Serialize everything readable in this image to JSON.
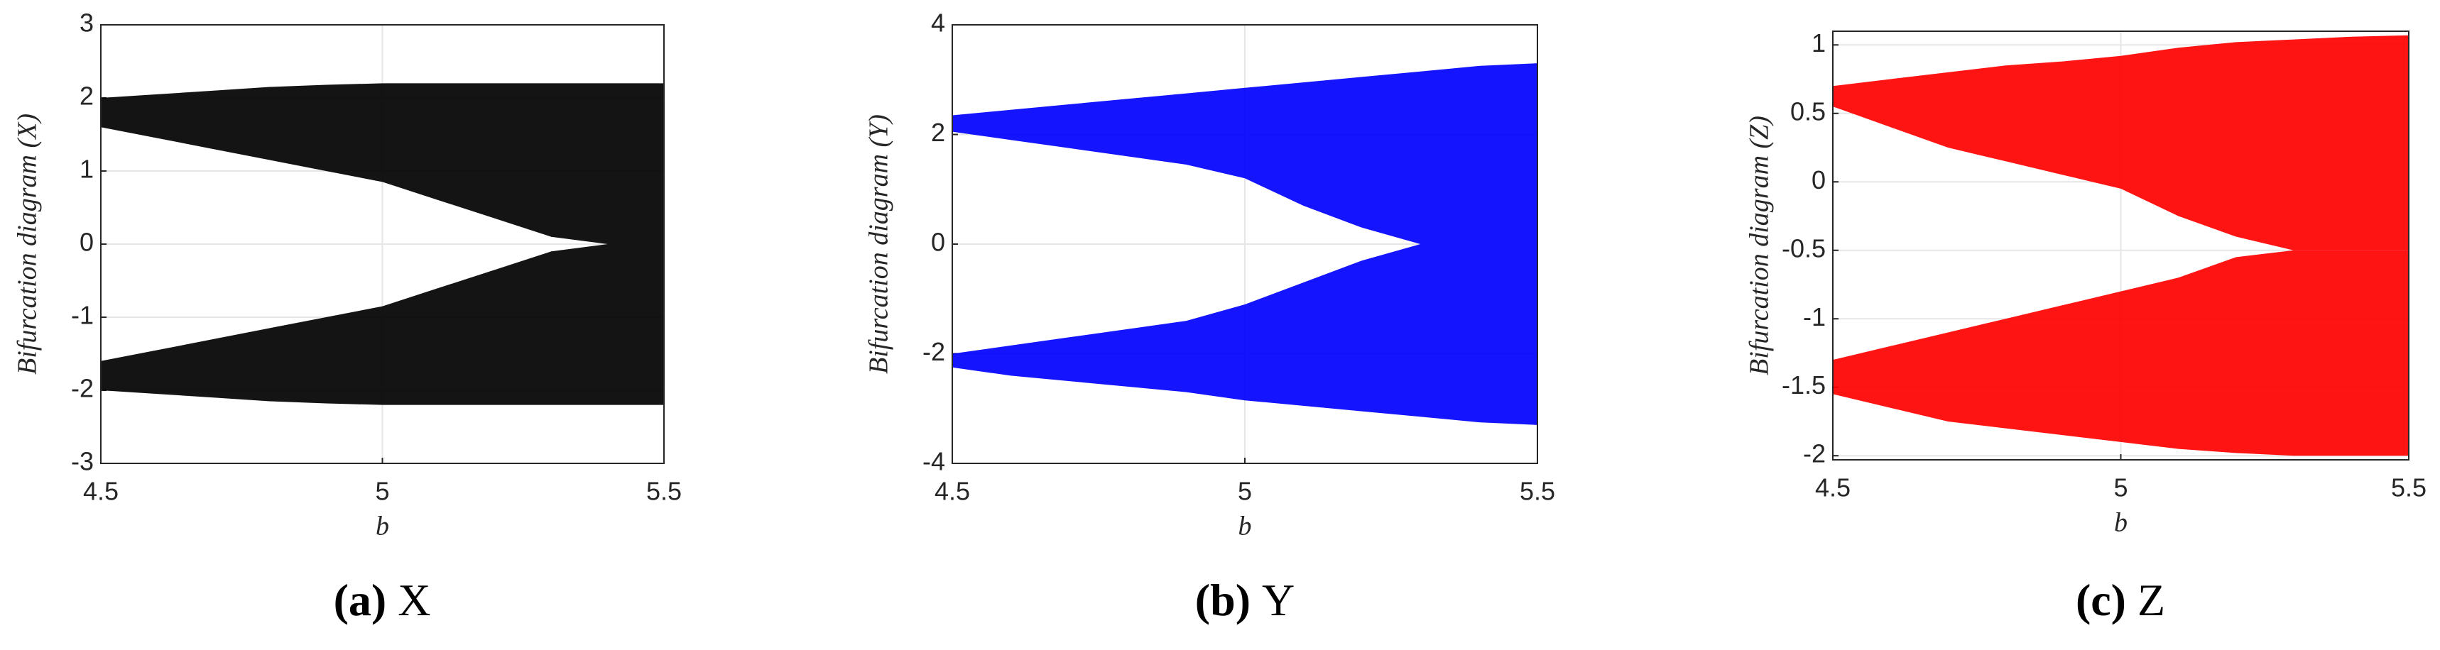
{
  "chart_data": [
    {
      "type": "area",
      "ylabel": "Bifurcation diagram (X)",
      "xlabel": "b",
      "caption": {
        "label": "(a)",
        "text": "X"
      },
      "x": [
        4.5,
        4.6,
        4.7,
        4.8,
        4.9,
        5.0,
        5.1,
        5.2,
        5.3,
        5.4,
        5.5
      ],
      "xlim": [
        4.5,
        5.5
      ],
      "xticks": [
        4.5,
        5,
        5.5
      ],
      "ylim": [
        -3,
        3
      ],
      "yticks": [
        -3,
        -2,
        -1,
        0,
        1,
        2,
        3
      ],
      "grid": true,
      "series": [
        {
          "color": "#000000",
          "high": [
            2.0,
            2.05,
            2.1,
            2.15,
            2.18,
            2.2,
            2.2,
            2.2,
            2.2,
            2.2,
            2.2
          ],
          "low": [
            1.6,
            1.45,
            1.3,
            1.15,
            1.0,
            0.85,
            0.6,
            0.35,
            0.1,
            0,
            0
          ]
        },
        {
          "color": "#000000",
          "high": [
            -1.6,
            -1.45,
            -1.3,
            -1.15,
            -1.0,
            -0.85,
            -0.6,
            -0.35,
            -0.1,
            0,
            0
          ],
          "low": [
            -2.0,
            -2.05,
            -2.1,
            -2.15,
            -2.18,
            -2.2,
            -2.2,
            -2.2,
            -2.2,
            -2.2,
            -2.2
          ]
        }
      ]
    },
    {
      "type": "area",
      "ylabel": "Bifurcation diagram (Y)",
      "xlabel": "b",
      "caption": {
        "label": "(b)",
        "text": "Y"
      },
      "x": [
        4.5,
        4.6,
        4.7,
        4.8,
        4.9,
        5.0,
        5.1,
        5.2,
        5.3,
        5.4,
        5.5
      ],
      "xlim": [
        4.5,
        5.5
      ],
      "xticks": [
        4.5,
        5,
        5.5
      ],
      "ylim": [
        -4,
        4
      ],
      "yticks": [
        -4,
        -2,
        0,
        2,
        4
      ],
      "grid": true,
      "series": [
        {
          "color": "#0000ff",
          "high": [
            2.35,
            2.45,
            2.55,
            2.65,
            2.75,
            2.85,
            2.95,
            3.05,
            3.15,
            3.25,
            3.3
          ],
          "low": [
            2.05,
            1.9,
            1.75,
            1.6,
            1.45,
            1.2,
            0.7,
            0.3,
            0,
            0,
            0
          ]
        },
        {
          "color": "#0000ff",
          "high": [
            -2.0,
            -1.85,
            -1.7,
            -1.55,
            -1.4,
            -1.1,
            -0.7,
            -0.3,
            0,
            0,
            0
          ],
          "low": [
            -2.25,
            -2.4,
            -2.5,
            -2.6,
            -2.7,
            -2.85,
            -2.95,
            -3.05,
            -3.15,
            -3.25,
            -3.3
          ]
        }
      ]
    },
    {
      "type": "area",
      "ylabel": "Bifurcation diagram (Z)",
      "xlabel": "b",
      "caption": {
        "label": "(c)",
        "text": "Z"
      },
      "x": [
        4.5,
        4.6,
        4.7,
        4.8,
        4.9,
        5.0,
        5.1,
        5.2,
        5.3,
        5.4,
        5.5
      ],
      "xlim": [
        4.5,
        5.5
      ],
      "xticks": [
        4.5,
        5,
        5.5
      ],
      "ylim": [
        -2.03,
        1.1
      ],
      "yticks": [
        -2,
        -1.5,
        -1,
        -0.5,
        0,
        0.5,
        1
      ],
      "grid": true,
      "series": [
        {
          "color": "#ff0000",
          "high": [
            0.7,
            0.75,
            0.8,
            0.85,
            0.88,
            0.92,
            0.98,
            1.02,
            1.04,
            1.06,
            1.07
          ],
          "low": [
            0.55,
            0.4,
            0.25,
            0.15,
            0.05,
            -0.05,
            -0.25,
            -0.4,
            -0.5,
            -0.5,
            -0.5
          ]
        },
        {
          "color": "#ff0000",
          "high": [
            -1.3,
            -1.2,
            -1.1,
            -1.0,
            -0.9,
            -0.8,
            -0.7,
            -0.55,
            -0.5,
            -0.5,
            -0.5
          ],
          "low": [
            -1.55,
            -1.65,
            -1.75,
            -1.8,
            -1.85,
            -1.9,
            -1.95,
            -1.98,
            -2.0,
            -2.0,
            -2.0
          ]
        }
      ]
    }
  ]
}
